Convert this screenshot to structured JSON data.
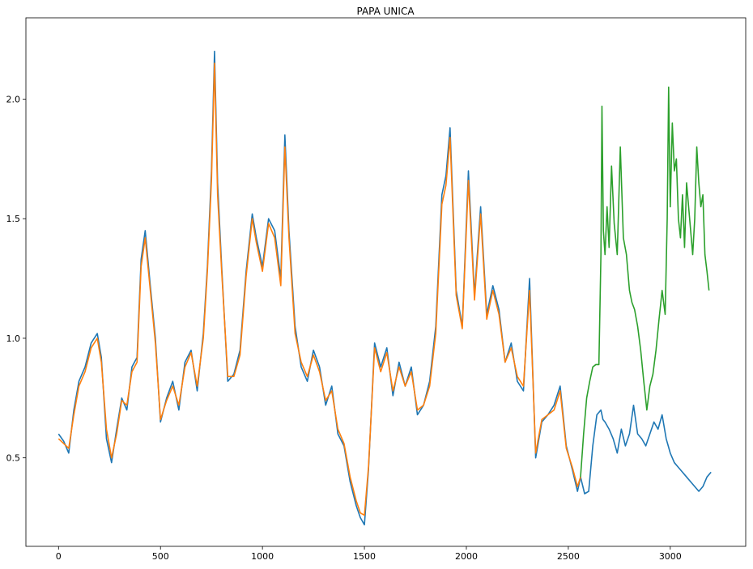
{
  "chart_data": {
    "type": "line",
    "title": "PAPA UNICA",
    "xlabel": "",
    "ylabel": "",
    "xlim": [
      -160,
      3370
    ],
    "ylim": [
      0.13,
      2.34
    ],
    "x_ticks": [
      0,
      500,
      1000,
      1500,
      2000,
      2500,
      3000
    ],
    "x_tick_labels": [
      "0",
      "500",
      "1000",
      "1500",
      "2000",
      "2500",
      "3000"
    ],
    "y_ticks": [
      0.5,
      1.0,
      1.5,
      2.0
    ],
    "y_tick_labels": [
      "0.5",
      "1.0",
      "1.5",
      "2.0"
    ],
    "grid": false,
    "legend": "none",
    "colors": [
      "#1f77b4",
      "#ff7f0e",
      "#2ca02c"
    ],
    "series": [
      {
        "color": "#1f77b4",
        "x": [
          0,
          25,
          50,
          75,
          100,
          130,
          160,
          190,
          210,
          235,
          260,
          285,
          310,
          335,
          360,
          385,
          405,
          425,
          450,
          475,
          500,
          530,
          560,
          590,
          620,
          650,
          680,
          710,
          730,
          750,
          765,
          780,
          800,
          830,
          860,
          890,
          920,
          950,
          970,
          1000,
          1030,
          1060,
          1090,
          1110,
          1130,
          1160,
          1190,
          1220,
          1250,
          1280,
          1310,
          1340,
          1370,
          1400,
          1430,
          1460,
          1480,
          1500,
          1520,
          1550,
          1580,
          1610,
          1640,
          1670,
          1700,
          1730,
          1760,
          1790,
          1820,
          1850,
          1880,
          1900,
          1920,
          1950,
          1980,
          2010,
          2040,
          2070,
          2100,
          2130,
          2160,
          2190,
          2220,
          2250,
          2280,
          2310,
          2340,
          2370,
          2400,
          2430,
          2460,
          2490,
          2520,
          2545,
          2560,
          2580,
          2600,
          2620,
          2640,
          2660,
          2670,
          2680,
          2700,
          2720,
          2740,
          2760,
          2780,
          2800,
          2820,
          2840,
          2860,
          2880,
          2900,
          2920,
          2940,
          2960,
          2980,
          2990,
          3000,
          3020,
          3040,
          3060,
          3080,
          3100,
          3120,
          3140,
          3160,
          3180,
          3200
        ],
        "values": [
          0.6,
          0.57,
          0.52,
          0.7,
          0.82,
          0.88,
          0.98,
          1.02,
          0.92,
          0.58,
          0.48,
          0.62,
          0.75,
          0.7,
          0.88,
          0.92,
          1.33,
          1.45,
          1.22,
          1.0,
          0.65,
          0.75,
          0.82,
          0.7,
          0.9,
          0.95,
          0.78,
          1.02,
          1.3,
          1.7,
          2.2,
          1.65,
          1.3,
          0.82,
          0.85,
          0.95,
          1.28,
          1.52,
          1.42,
          1.3,
          1.5,
          1.45,
          1.25,
          1.85,
          1.45,
          1.05,
          0.88,
          0.82,
          0.95,
          0.88,
          0.72,
          0.8,
          0.6,
          0.55,
          0.4,
          0.3,
          0.25,
          0.22,
          0.45,
          0.98,
          0.88,
          0.96,
          0.76,
          0.9,
          0.8,
          0.88,
          0.68,
          0.72,
          0.82,
          1.05,
          1.6,
          1.68,
          1.88,
          1.2,
          1.05,
          1.7,
          1.18,
          1.55,
          1.1,
          1.22,
          1.12,
          0.9,
          0.98,
          0.82,
          0.78,
          1.25,
          0.5,
          0.65,
          0.68,
          0.72,
          0.8,
          0.55,
          0.45,
          0.36,
          0.42,
          0.35,
          0.36,
          0.55,
          0.68,
          0.7,
          0.66,
          0.65,
          0.62,
          0.58,
          0.52,
          0.62,
          0.55,
          0.6,
          0.72,
          0.6,
          0.58,
          0.55,
          0.6,
          0.65,
          0.62,
          0.68,
          0.58,
          0.55,
          0.52,
          0.48,
          0.46,
          0.44,
          0.42,
          0.4,
          0.38,
          0.36,
          0.38,
          0.42,
          0.44
        ]
      },
      {
        "color": "#ff7f0e",
        "x": [
          0,
          25,
          50,
          75,
          100,
          130,
          160,
          190,
          210,
          235,
          260,
          285,
          310,
          335,
          360,
          385,
          405,
          425,
          450,
          475,
          500,
          530,
          560,
          590,
          620,
          650,
          680,
          710,
          730,
          750,
          765,
          780,
          800,
          830,
          860,
          890,
          920,
          950,
          970,
          1000,
          1030,
          1060,
          1090,
          1110,
          1130,
          1160,
          1190,
          1220,
          1250,
          1280,
          1310,
          1340,
          1370,
          1400,
          1430,
          1460,
          1480,
          1500,
          1520,
          1550,
          1580,
          1610,
          1640,
          1670,
          1700,
          1730,
          1760,
          1790,
          1820,
          1850,
          1880,
          1900,
          1920,
          1950,
          1980,
          2010,
          2040,
          2070,
          2100,
          2130,
          2160,
          2190,
          2220,
          2250,
          2280,
          2310,
          2340,
          2370,
          2400,
          2430,
          2460,
          2490,
          2520,
          2545,
          2560
        ],
        "values": [
          0.58,
          0.56,
          0.54,
          0.68,
          0.8,
          0.86,
          0.96,
          1.0,
          0.9,
          0.62,
          0.5,
          0.6,
          0.74,
          0.72,
          0.86,
          0.9,
          1.3,
          1.42,
          1.2,
          0.98,
          0.66,
          0.74,
          0.8,
          0.72,
          0.88,
          0.94,
          0.8,
          1.0,
          1.28,
          1.66,
          2.15,
          1.6,
          1.28,
          0.84,
          0.84,
          0.93,
          1.26,
          1.5,
          1.4,
          1.28,
          1.48,
          1.42,
          1.22,
          1.8,
          1.42,
          1.02,
          0.9,
          0.84,
          0.93,
          0.86,
          0.74,
          0.78,
          0.62,
          0.56,
          0.42,
          0.32,
          0.27,
          0.26,
          0.46,
          0.96,
          0.86,
          0.94,
          0.78,
          0.88,
          0.8,
          0.86,
          0.7,
          0.72,
          0.8,
          1.02,
          1.56,
          1.64,
          1.84,
          1.18,
          1.04,
          1.66,
          1.16,
          1.52,
          1.08,
          1.2,
          1.1,
          0.9,
          0.96,
          0.84,
          0.8,
          1.2,
          0.52,
          0.66,
          0.68,
          0.7,
          0.78,
          0.54,
          0.46,
          0.38,
          0.42
        ]
      },
      {
        "color": "#2ca02c",
        "x": [
          2560,
          2575,
          2590,
          2605,
          2620,
          2635,
          2650,
          2660,
          2665,
          2672,
          2680,
          2690,
          2700,
          2712,
          2725,
          2740,
          2755,
          2770,
          2785,
          2800,
          2812,
          2825,
          2840,
          2855,
          2870,
          2885,
          2900,
          2915,
          2930,
          2945,
          2960,
          2975,
          2985,
          2992,
          3000,
          3010,
          3020,
          3030,
          3040,
          3050,
          3060,
          3070,
          3080,
          3090,
          3100,
          3110,
          3120,
          3130,
          3140,
          3150,
          3160,
          3170,
          3180,
          3190
        ],
        "values": [
          0.42,
          0.6,
          0.75,
          0.82,
          0.88,
          0.89,
          0.89,
          1.35,
          1.97,
          1.45,
          1.35,
          1.55,
          1.38,
          1.72,
          1.48,
          1.35,
          1.8,
          1.42,
          1.35,
          1.2,
          1.15,
          1.12,
          1.05,
          0.95,
          0.82,
          0.7,
          0.8,
          0.85,
          0.95,
          1.08,
          1.2,
          1.1,
          1.5,
          2.05,
          1.55,
          1.9,
          1.7,
          1.75,
          1.5,
          1.42,
          1.6,
          1.38,
          1.65,
          1.55,
          1.45,
          1.35,
          1.5,
          1.8,
          1.65,
          1.55,
          1.6,
          1.35,
          1.28,
          1.2
        ]
      }
    ]
  }
}
